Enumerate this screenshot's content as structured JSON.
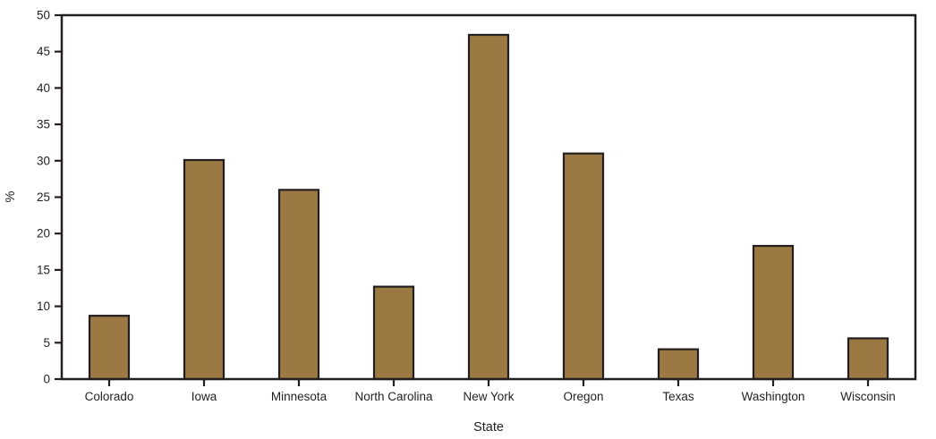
{
  "chart_data": {
    "type": "bar",
    "categories": [
      "Colorado",
      "Iowa",
      "Minnesota",
      "North Carolina",
      "New York",
      "Oregon",
      "Texas",
      "Washington",
      "Wisconsin"
    ],
    "values": [
      8.7,
      30.1,
      26,
      12.7,
      47.3,
      31,
      4.1,
      18.3,
      5.6
    ],
    "title": "",
    "xlabel": "State",
    "ylabel": "%",
    "ylim": [
      0,
      50
    ],
    "ytick_step": 5,
    "grid": false,
    "legend": "none",
    "colors": {
      "bar_fill": "#9C7843",
      "bar_stroke": "#231F20",
      "axis": "#231F20",
      "text": "#231F20",
      "background": "#FFFFFF"
    }
  }
}
